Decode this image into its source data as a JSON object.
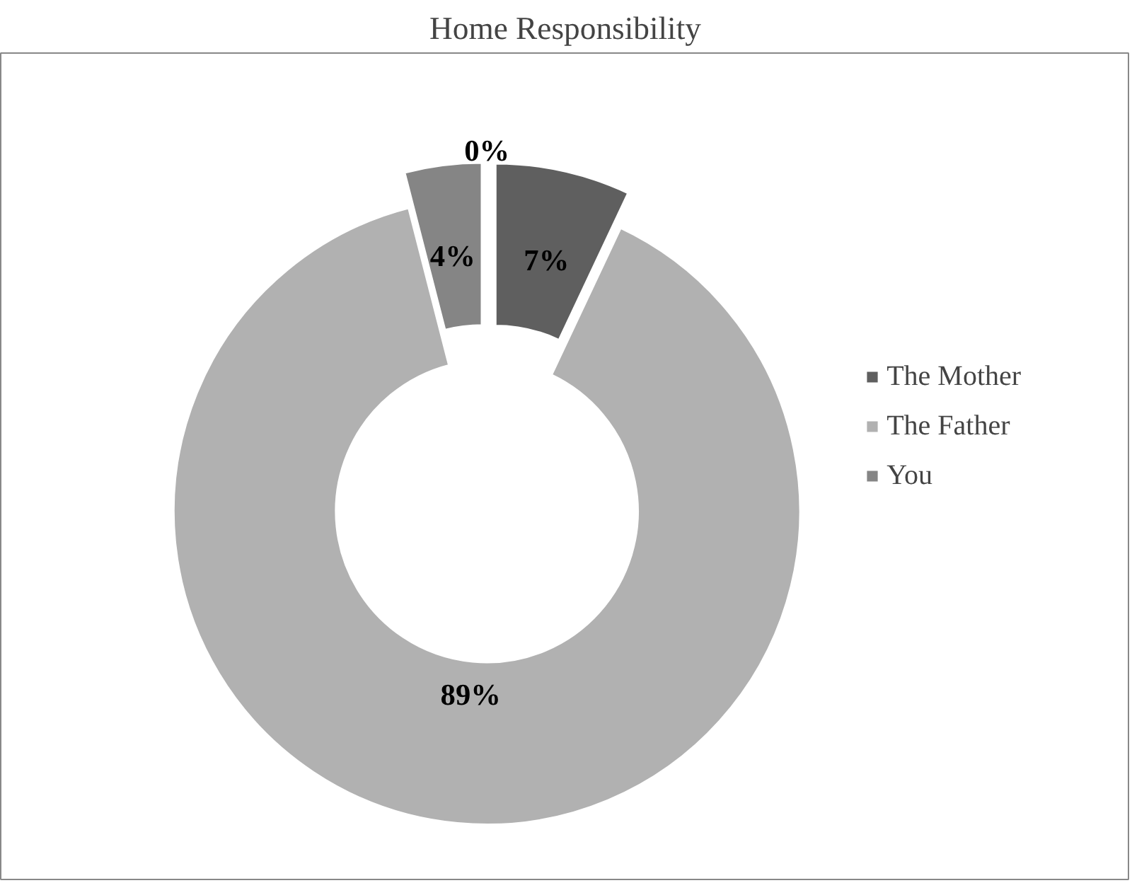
{
  "chart_data": {
    "type": "donut",
    "title": "Home Responsibility",
    "categories": [
      "The Mother",
      "The Father",
      "You",
      null
    ],
    "values": [
      7,
      89,
      4,
      0
    ],
    "colors": [
      "#5f5f5f",
      "#b1b1b1",
      "#858585",
      "#9a9a9a"
    ],
    "value_labels": [
      "7%",
      "89%",
      "4%",
      "0%"
    ],
    "legend": "right"
  }
}
